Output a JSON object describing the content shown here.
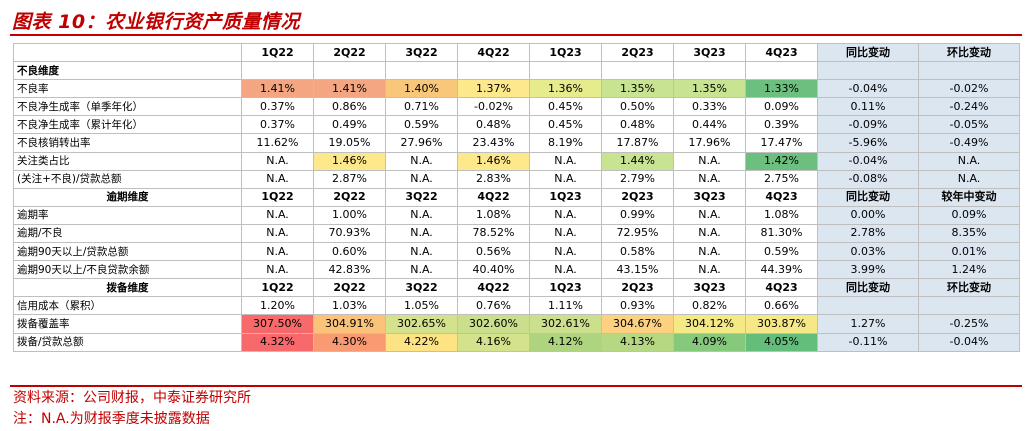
{
  "title": "图表 10：农业银行资产质量情况",
  "quarters": [
    "1Q22",
    "2Q22",
    "3Q22",
    "4Q22",
    "1Q23",
    "2Q23",
    "3Q23",
    "4Q23"
  ],
  "sections": [
    {
      "name": "不良维度",
      "has_header_row": false,
      "header_cols": [
        "",
        "",
        "",
        "",
        "",
        "",
        "",
        "",
        "",
        ""
      ],
      "rows": [
        {
          "label": "不良率",
          "values": [
            "1.41%",
            "1.41%",
            "1.40%",
            "1.37%",
            "1.36%",
            "1.35%",
            "1.35%",
            "1.33%"
          ],
          "yoy": "-0.04%",
          "qoq": "-0.02%",
          "colors": [
            "#f4a582",
            "#f4a582",
            "#f9c77a",
            "#fde98c",
            "#e6ec8c",
            "#c8e392",
            "#c8e392",
            "#6cbf7f"
          ]
        },
        {
          "label": "不良净生成率（单季年化）",
          "values": [
            "0.37%",
            "0.86%",
            "0.71%",
            "-0.02%",
            "0.45%",
            "0.50%",
            "0.33%",
            "0.09%"
          ],
          "yoy": "0.11%",
          "qoq": "-0.24%",
          "colors": [
            "",
            "",
            "",
            "",
            "",
            "",
            "",
            ""
          ]
        },
        {
          "label": "不良净生成率（累计年化）",
          "values": [
            "0.37%",
            "0.49%",
            "0.59%",
            "0.48%",
            "0.45%",
            "0.48%",
            "0.44%",
            "0.39%"
          ],
          "yoy": "-0.09%",
          "qoq": "-0.05%",
          "colors": [
            "",
            "",
            "",
            "",
            "",
            "",
            "",
            ""
          ]
        },
        {
          "label": "不良核销转出率",
          "values": [
            "11.62%",
            "19.05%",
            "27.96%",
            "23.43%",
            "8.19%",
            "17.87%",
            "17.96%",
            "17.47%"
          ],
          "yoy": "-5.96%",
          "qoq": "-0.49%",
          "colors": [
            "",
            "",
            "",
            "",
            "",
            "",
            "",
            ""
          ]
        },
        {
          "label": "关注类占比",
          "values": [
            "N.A.",
            "1.46%",
            "N.A.",
            "1.46%",
            "N.A.",
            "1.44%",
            "N.A.",
            "1.42%"
          ],
          "yoy": "-0.04%",
          "qoq": "N.A.",
          "colors": [
            "",
            "#fde98c",
            "",
            "#fde98c",
            "",
            "#c8e392",
            "",
            "#6cbf7f"
          ]
        },
        {
          "label": "(关注+不良)/贷款总额",
          "values": [
            "N.A.",
            "2.87%",
            "N.A.",
            "2.83%",
            "N.A.",
            "2.79%",
            "N.A.",
            "2.75%"
          ],
          "yoy": "-0.08%",
          "qoq": "N.A.",
          "colors": [
            "",
            "",
            "",
            "",
            "",
            "",
            "",
            ""
          ]
        }
      ]
    },
    {
      "name": "逾期维度",
      "has_header_row": true,
      "header_yoy": "同比变动",
      "header_qoq": "较年中变动",
      "rows": [
        {
          "label": "逾期率",
          "values": [
            "N.A.",
            "1.00%",
            "N.A.",
            "1.08%",
            "N.A.",
            "0.99%",
            "N.A.",
            "1.08%"
          ],
          "yoy": "0.00%",
          "qoq": "0.09%",
          "colors": [
            "",
            "",
            "",
            "",
            "",
            "",
            "",
            ""
          ]
        },
        {
          "label": "逾期/不良",
          "values": [
            "N.A.",
            "70.93%",
            "N.A.",
            "78.52%",
            "N.A.",
            "72.95%",
            "N.A.",
            "81.30%"
          ],
          "yoy": "2.78%",
          "qoq": "8.35%",
          "colors": [
            "",
            "",
            "",
            "",
            "",
            "",
            "",
            ""
          ]
        },
        {
          "label": "逾期90天以上/贷款总额",
          "values": [
            "N.A.",
            "0.60%",
            "N.A.",
            "0.56%",
            "N.A.",
            "0.58%",
            "N.A.",
            "0.59%"
          ],
          "yoy": "0.03%",
          "qoq": "0.01%",
          "colors": [
            "",
            "",
            "",
            "",
            "",
            "",
            "",
            ""
          ]
        },
        {
          "label": "逾期90天以上/不良贷款余额",
          "values": [
            "N.A.",
            "42.83%",
            "N.A.",
            "40.40%",
            "N.A.",
            "43.15%",
            "N.A.",
            "44.39%"
          ],
          "yoy": "3.99%",
          "qoq": "1.24%",
          "colors": [
            "",
            "",
            "",
            "",
            "",
            "",
            "",
            ""
          ]
        }
      ]
    },
    {
      "name": "拨备维度",
      "has_header_row": true,
      "header_yoy": "同比变动",
      "header_qoq": "环比变动",
      "rows": [
        {
          "label": "信用成本（累积）",
          "values": [
            "1.20%",
            "1.03%",
            "1.05%",
            "0.76%",
            "1.11%",
            "0.93%",
            "0.82%",
            "0.66%"
          ],
          "yoy": "",
          "qoq": "",
          "colors": [
            "",
            "",
            "",
            "",
            "",
            "",
            "",
            ""
          ]
        },
        {
          "label": "拨备覆盖率",
          "values": [
            "307.50%",
            "304.91%",
            "302.65%",
            "302.60%",
            "302.61%",
            "304.67%",
            "304.12%",
            "303.87%"
          ],
          "yoy": "1.27%",
          "qoq": "-0.25%",
          "colors": [
            "#f8696b",
            "#fbc37a",
            "#d4e28d",
            "#c9df8b",
            "#ccdf8c",
            "#fdd17f",
            "#f5e985",
            "#f6e886"
          ]
        },
        {
          "label": "拨备/贷款总额",
          "values": [
            "4.32%",
            "4.30%",
            "4.22%",
            "4.16%",
            "4.12%",
            "4.13%",
            "4.09%",
            "4.05%"
          ],
          "yoy": "-0.11%",
          "qoq": "-0.04%",
          "colors": [
            "#f8696b",
            "#fa9a73",
            "#fde384",
            "#d3e28b",
            "#aed47f",
            "#b7d883",
            "#86c87c",
            "#63be7b"
          ]
        }
      ]
    }
  ],
  "top_header": {
    "yoy": "同比变动",
    "qoq": "环比变动"
  },
  "footnotes": [
    "资料来源：公司财报，中泰证券研究所",
    "注：N.A.为财报季度未披露数据"
  ]
}
